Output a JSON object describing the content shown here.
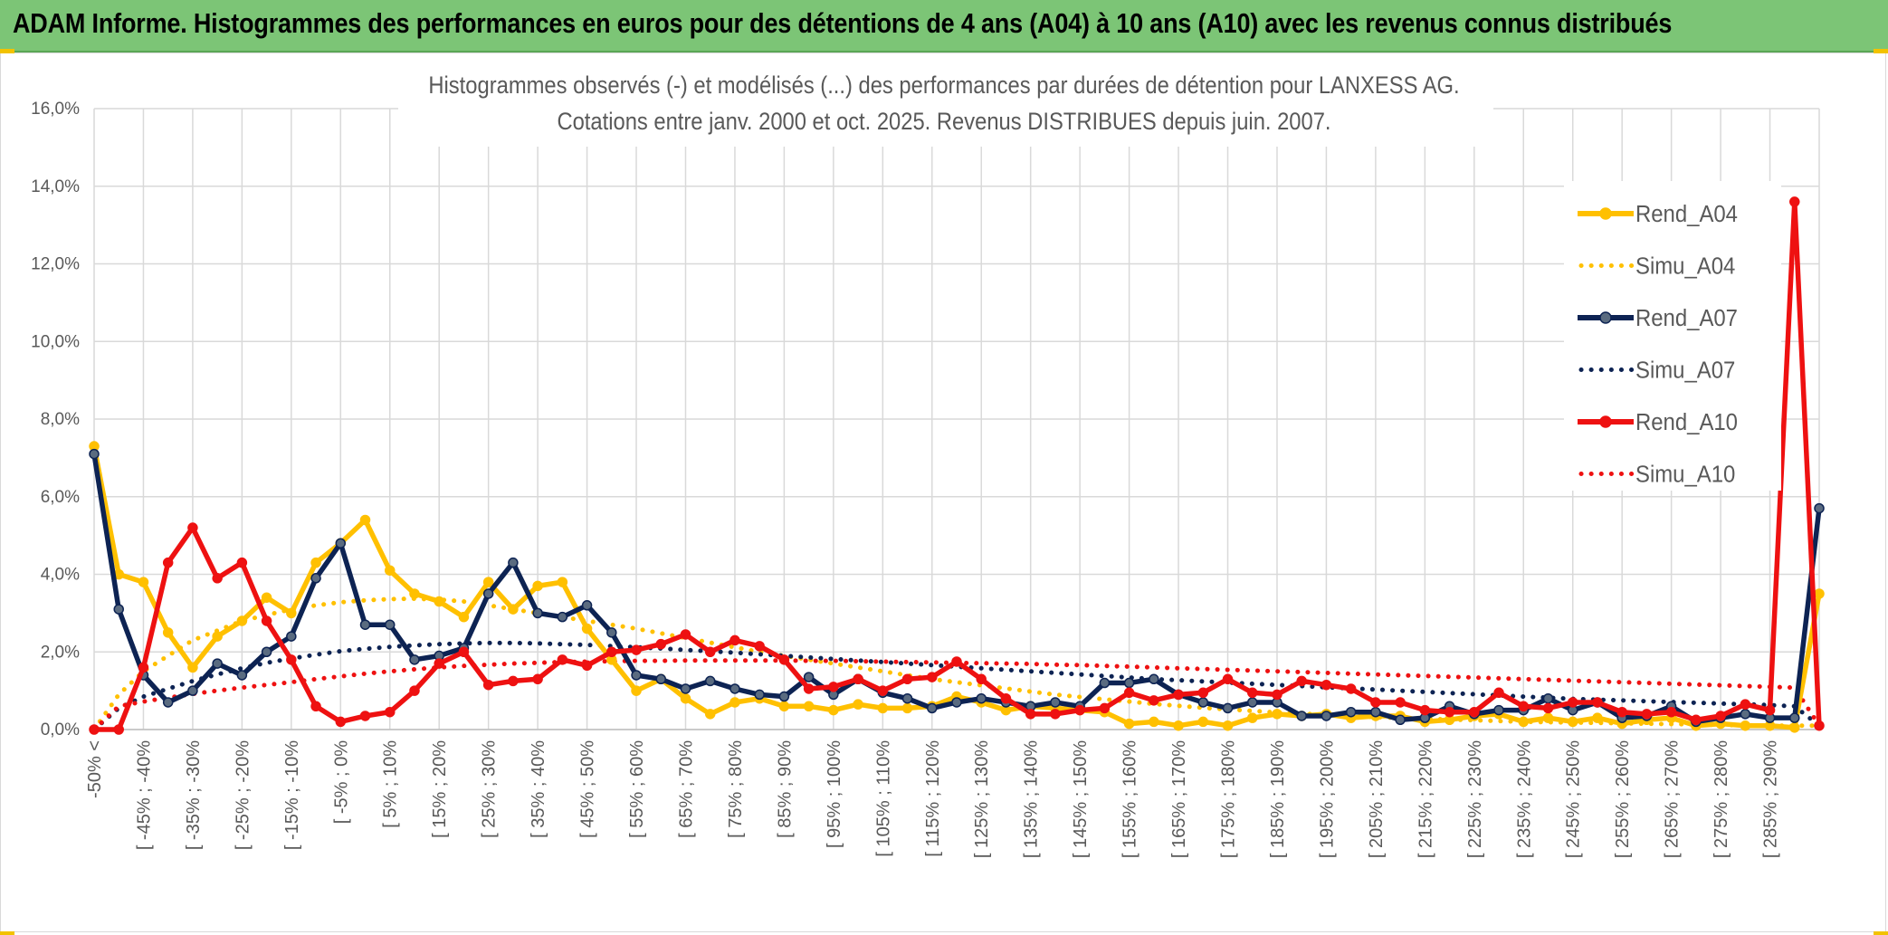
{
  "header": {
    "title": "ADAM Informe. Histogrammes des performances en euros pour des détentions de 4 ans (A04) à 10 ans (A10) avec les revenus connus distribués"
  },
  "chart_data": {
    "type": "line",
    "title": "Histogrammes observés (-) et modélisés (...) des performances par durées de détention pour LANXESS AG.",
    "subtitle": "Cotations entre janv. 2000 et oct. 2025. Revenus DISTRIBUES depuis juin. 2007.",
    "xlabel": "",
    "ylabel": "",
    "ylim": [
      0,
      16
    ],
    "y_ticks": [
      "0,0%",
      "2,0%",
      "4,0%",
      "6,0%",
      "8,0%",
      "10,0%",
      "12,0%",
      "14,0%",
      "16,0%"
    ],
    "grid": true,
    "legend_position": "right",
    "categories": [
      "-50% <",
      "[ -50% ; -45%",
      "[ -45% ; -40%",
      "[ -40% ; -35%",
      "[ -35% ; -30%",
      "[ -30% ; -25%",
      "[ -25% ; -20%",
      "[ -20% ; -15%",
      "[ -15% ; -10%",
      "[ -10% ; -5%",
      "[ -5% ; 0%",
      "[ 0% ; 5%",
      "[ 5% ; 10%",
      "[ 10% ; 15%",
      "[ 15% ; 20%",
      "[ 20% ; 25%",
      "[ 25% ; 30%",
      "[ 30% ; 35%",
      "[ 35% ; 40%",
      "[ 40% ; 45%",
      "[ 45% ; 50%",
      "[ 50% ; 55%",
      "[ 55% ; 60%",
      "[ 60% ; 65%",
      "[ 65% ; 70%",
      "[ 70% ; 75%",
      "[ 75% ; 80%",
      "[ 80% ; 85%",
      "[ 85% ; 90%",
      "[ 90% ; 95%",
      "[ 95% ; 100%",
      "[ 100% ; 105%",
      "[ 105% ; 110%",
      "[ 110% ; 115%",
      "[ 115% ; 120%",
      "[ 120% ; 125%",
      "[ 125% ; 130%",
      "[ 130% ; 135%",
      "[ 135% ; 140%",
      "[ 140% ; 145%",
      "[ 145% ; 150%",
      "[ 150% ; 155%",
      "[ 155% ; 160%",
      "[ 160% ; 165%",
      "[ 165% ; 170%",
      "[ 170% ; 175%",
      "[ 175% ; 180%",
      "[ 180% ; 185%",
      "[ 185% ; 190%",
      "[ 190% ; 195%",
      "[ 195% ; 200%",
      "[ 200% ; 205%",
      "[ 205% ; 210%",
      "[ 210% ; 215%",
      "[ 215% ; 220%",
      "[ 220% ; 225%",
      "[ 225% ; 230%",
      "[ 230% ; 235%",
      "[ 235% ; 240%",
      "[ 240% ; 245%",
      "[ 245% ; 250%",
      "[ 250% ; 255%",
      "[ 255% ; 260%",
      "[ 260% ; 265%",
      "[ 265% ; 270%",
      "[ 270% ; 275%",
      "[ 275% ; 280%",
      "[ 280% ; 285%",
      "[ 285% ; 290%",
      "[ 290% ; 295%",
      "[ 295% ; 300%"
    ],
    "category_labels_shown": [
      "-50% <",
      "[ -45% ; -40%",
      "[ -35% ; -30%",
      "[ -25% ; -20%",
      "[ -15% ; -10%",
      "[ -5% ; 0%",
      "[ 5% ; 10%",
      "[ 15% ; 20%",
      "[ 25% ; 30%",
      "[ 35% ; 40%",
      "[ 45% ; 50%",
      "[ 55% ; 60%",
      "[ 65% ; 70%",
      "[ 75% ; 80%",
      "[ 85% ; 90%",
      "[ 95% ; 100%",
      "[ 105% ; 110%",
      "[ 115% ; 120%",
      "[ 125% ; 130%",
      "[ 135% ; 140%",
      "[ 145% ; 150%",
      "[ 155% ; 160%",
      "[ 165% ; 170%",
      "[ 175% ; 180%",
      "[ 185% ; 190%",
      "[ 195% ; 200%",
      "[ 205% ; 210%",
      "[ 215% ; 220%",
      "[ 225% ; 230%",
      "[ 235% ; 240%",
      "[ 245% ; 250%",
      "[ 255% ; 260%",
      "[ 265% ; 270%",
      "[ 275% ; 280%",
      "[ 285% ; 290%"
    ],
    "series": [
      {
        "name": "Rend_A04",
        "style": "solid",
        "color": "#ffc000",
        "values": [
          7.3,
          4.0,
          3.8,
          2.5,
          1.6,
          2.4,
          2.8,
          3.4,
          3.0,
          4.3,
          4.8,
          5.4,
          4.1,
          3.5,
          3.3,
          2.9,
          3.8,
          3.1,
          3.7,
          3.8,
          2.6,
          1.8,
          1.0,
          1.3,
          0.8,
          0.4,
          0.7,
          0.8,
          0.6,
          0.6,
          0.5,
          0.65,
          0.55,
          0.55,
          0.6,
          0.85,
          0.7,
          0.5,
          0.6,
          0.55,
          0.5,
          0.45,
          0.15,
          0.2,
          0.1,
          0.2,
          0.1,
          0.3,
          0.4,
          0.35,
          0.4,
          0.3,
          0.35,
          0.35,
          0.2,
          0.25,
          0.35,
          0.4,
          0.2,
          0.3,
          0.2,
          0.3,
          0.15,
          0.25,
          0.3,
          0.1,
          0.15,
          0.1,
          0.1,
          0.05,
          3.5
        ]
      },
      {
        "name": "Simu_A04",
        "style": "dotted",
        "color": "#ffc000",
        "values": [
          0.0,
          0.9,
          1.5,
          1.9,
          2.3,
          2.55,
          2.8,
          2.95,
          3.1,
          3.2,
          3.28,
          3.33,
          3.36,
          3.37,
          3.35,
          3.3,
          3.2,
          3.1,
          3.0,
          2.9,
          2.8,
          2.7,
          2.6,
          2.48,
          2.36,
          2.24,
          2.12,
          2.0,
          1.9,
          1.8,
          1.7,
          1.6,
          1.5,
          1.4,
          1.3,
          1.22,
          1.14,
          1.06,
          0.98,
          0.9,
          0.84,
          0.78,
          0.72,
          0.66,
          0.61,
          0.56,
          0.52,
          0.48,
          0.44,
          0.41,
          0.38,
          0.35,
          0.32,
          0.3,
          0.28,
          0.26,
          0.24,
          0.22,
          0.2,
          0.19,
          0.18,
          0.17,
          0.16,
          0.15,
          0.14,
          0.13,
          0.12,
          0.11,
          0.1,
          0.1,
          0.1
        ]
      },
      {
        "name": "Rend_A07",
        "style": "solid",
        "color": "#0d2353",
        "values": [
          7.1,
          3.1,
          1.4,
          0.7,
          1.0,
          1.7,
          1.4,
          2.0,
          2.4,
          3.9,
          4.8,
          2.7,
          2.7,
          1.8,
          1.9,
          2.1,
          3.5,
          4.3,
          3.0,
          2.9,
          3.2,
          2.5,
          1.4,
          1.3,
          1.05,
          1.25,
          1.05,
          0.9,
          0.85,
          1.35,
          0.9,
          1.3,
          0.95,
          0.8,
          0.55,
          0.7,
          0.8,
          0.7,
          0.6,
          0.7,
          0.6,
          1.2,
          1.2,
          1.3,
          0.9,
          0.7,
          0.55,
          0.7,
          0.7,
          0.35,
          0.35,
          0.45,
          0.45,
          0.25,
          0.3,
          0.6,
          0.4,
          0.5,
          0.5,
          0.8,
          0.5,
          0.7,
          0.3,
          0.35,
          0.6,
          0.2,
          0.3,
          0.4,
          0.3,
          0.3,
          5.7
        ]
      },
      {
        "name": "Simu_A07",
        "style": "dotted",
        "color": "#0d2353",
        "values": [
          0.0,
          0.55,
          0.85,
          1.05,
          1.25,
          1.42,
          1.58,
          1.72,
          1.83,
          1.93,
          2.02,
          2.08,
          2.13,
          2.17,
          2.2,
          2.22,
          2.23,
          2.23,
          2.22,
          2.2,
          2.18,
          2.15,
          2.12,
          2.09,
          2.05,
          2.02,
          1.98,
          1.94,
          1.9,
          1.86,
          1.82,
          1.78,
          1.74,
          1.7,
          1.66,
          1.62,
          1.58,
          1.54,
          1.5,
          1.46,
          1.42,
          1.38,
          1.34,
          1.3,
          1.27,
          1.24,
          1.21,
          1.18,
          1.15,
          1.12,
          1.09,
          1.06,
          1.03,
          1.0,
          0.97,
          0.94,
          0.91,
          0.88,
          0.85,
          0.82,
          0.79,
          0.77,
          0.75,
          0.73,
          0.71,
          0.69,
          0.67,
          0.65,
          0.63,
          0.6,
          0.1
        ]
      },
      {
        "name": "Rend_A10",
        "style": "solid",
        "color": "#ee1111",
        "values": [
          0.0,
          0.0,
          1.6,
          4.3,
          5.2,
          3.9,
          4.3,
          2.8,
          1.8,
          0.6,
          0.2,
          0.35,
          0.45,
          1.0,
          1.7,
          2.0,
          1.15,
          1.25,
          1.3,
          1.8,
          1.65,
          2.0,
          2.05,
          2.2,
          2.45,
          2.0,
          2.3,
          2.15,
          1.8,
          1.05,
          1.1,
          1.3,
          1.0,
          1.3,
          1.35,
          1.75,
          1.3,
          0.8,
          0.4,
          0.4,
          0.5,
          0.55,
          0.95,
          0.75,
          0.9,
          0.95,
          1.3,
          0.95,
          0.9,
          1.25,
          1.15,
          1.05,
          0.7,
          0.7,
          0.5,
          0.45,
          0.45,
          0.95,
          0.6,
          0.55,
          0.7,
          0.7,
          0.45,
          0.4,
          0.45,
          0.25,
          0.35,
          0.65,
          0.5,
          13.6,
          0.1
        ]
      },
      {
        "name": "Simu_A10",
        "style": "dotted",
        "color": "#ee1111",
        "values": [
          0.0,
          0.6,
          0.72,
          0.82,
          0.92,
          1.0,
          1.08,
          1.15,
          1.22,
          1.3,
          1.37,
          1.44,
          1.5,
          1.55,
          1.6,
          1.64,
          1.67,
          1.7,
          1.72,
          1.74,
          1.75,
          1.76,
          1.77,
          1.77,
          1.78,
          1.78,
          1.78,
          1.78,
          1.78,
          1.77,
          1.77,
          1.76,
          1.75,
          1.74,
          1.73,
          1.72,
          1.71,
          1.7,
          1.69,
          1.67,
          1.66,
          1.64,
          1.62,
          1.6,
          1.58,
          1.56,
          1.54,
          1.52,
          1.5,
          1.48,
          1.46,
          1.44,
          1.42,
          1.4,
          1.38,
          1.36,
          1.34,
          1.32,
          1.3,
          1.28,
          1.26,
          1.24,
          1.22,
          1.2,
          1.18,
          1.16,
          1.14,
          1.12,
          1.1,
          1.08,
          0.1
        ]
      }
    ]
  }
}
